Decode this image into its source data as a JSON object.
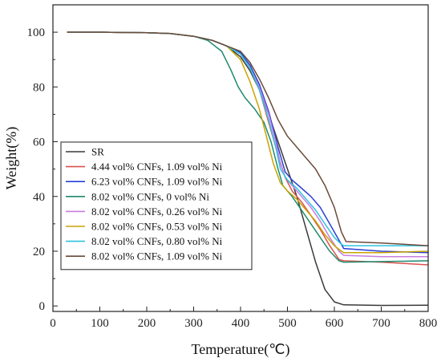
{
  "chart_data": {
    "type": "line",
    "title": "",
    "xlabel": "Temperature(℃)",
    "ylabel": "Weight(%)",
    "xlim": [
      0,
      800
    ],
    "ylim": [
      -2,
      110
    ],
    "xticks": [
      0,
      100,
      200,
      300,
      400,
      500,
      600,
      700,
      800
    ],
    "yticks": [
      0,
      20,
      40,
      60,
      80,
      100
    ],
    "grid": false,
    "legend_position": "left-middle",
    "series": [
      {
        "name": "SR",
        "color": "#3a3a3a",
        "points": [
          [
            30,
            100
          ],
          [
            100,
            100
          ],
          [
            200,
            99.8
          ],
          [
            250,
            99.5
          ],
          [
            300,
            98.5
          ],
          [
            340,
            97
          ],
          [
            370,
            95
          ],
          [
            400,
            91
          ],
          [
            420,
            86
          ],
          [
            440,
            79
          ],
          [
            460,
            70
          ],
          [
            480,
            60
          ],
          [
            500,
            50
          ],
          [
            520,
            40
          ],
          [
            540,
            28
          ],
          [
            560,
            16
          ],
          [
            580,
            6
          ],
          [
            600,
            1.5
          ],
          [
            620,
            0.4
          ],
          [
            700,
            0.2
          ],
          [
            800,
            0.3
          ]
        ]
      },
      {
        "name": "4.44 vol% CNFs, 1.09 vol% Ni",
        "color": "#d9534f",
        "points": [
          [
            30,
            100
          ],
          [
            100,
            100
          ],
          [
            200,
            99.8
          ],
          [
            250,
            99.5
          ],
          [
            300,
            98.5
          ],
          [
            340,
            97
          ],
          [
            370,
            95
          ],
          [
            400,
            92
          ],
          [
            420,
            87
          ],
          [
            440,
            79
          ],
          [
            460,
            67
          ],
          [
            480,
            55
          ],
          [
            495,
            47
          ],
          [
            510,
            42
          ],
          [
            530,
            38
          ],
          [
            550,
            33
          ],
          [
            570,
            28
          ],
          [
            590,
            22
          ],
          [
            610,
            17
          ],
          [
            620,
            16.5
          ],
          [
            700,
            16
          ],
          [
            800,
            15
          ]
        ]
      },
      {
        "name": "6.23 vol% CNFs, 1.09 vol% Ni",
        "color": "#2a3fd6",
        "points": [
          [
            30,
            100
          ],
          [
            100,
            100
          ],
          [
            200,
            99.8
          ],
          [
            250,
            99.5
          ],
          [
            300,
            98.5
          ],
          [
            340,
            97
          ],
          [
            370,
            95
          ],
          [
            400,
            92.5
          ],
          [
            420,
            88
          ],
          [
            440,
            81
          ],
          [
            460,
            71
          ],
          [
            480,
            58
          ],
          [
            495,
            49
          ],
          [
            510,
            46
          ],
          [
            530,
            43
          ],
          [
            550,
            40
          ],
          [
            570,
            36
          ],
          [
            590,
            30
          ],
          [
            610,
            24
          ],
          [
            620,
            21
          ],
          [
            700,
            20
          ],
          [
            800,
            19.5
          ]
        ]
      },
      {
        "name": "8.02 vol% CNFs, 0 vol% Ni",
        "color": "#1f8a6e",
        "points": [
          [
            30,
            100
          ],
          [
            100,
            100
          ],
          [
            200,
            99.8
          ],
          [
            250,
            99.5
          ],
          [
            300,
            98.5
          ],
          [
            330,
            97
          ],
          [
            360,
            93
          ],
          [
            380,
            86
          ],
          [
            395,
            80
          ],
          [
            410,
            76
          ],
          [
            430,
            72
          ],
          [
            450,
            67
          ],
          [
            465,
            60
          ],
          [
            480,
            50
          ],
          [
            490,
            44
          ],
          [
            510,
            40
          ],
          [
            530,
            35
          ],
          [
            550,
            30
          ],
          [
            570,
            25
          ],
          [
            590,
            20
          ],
          [
            610,
            16.5
          ],
          [
            620,
            16
          ],
          [
            700,
            16.2
          ],
          [
            800,
            16.5
          ]
        ]
      },
      {
        "name": "8.02 vol% CNFs, 0.26 vol% Ni",
        "color": "#c77dde",
        "points": [
          [
            30,
            100
          ],
          [
            100,
            100
          ],
          [
            200,
            99.8
          ],
          [
            250,
            99.5
          ],
          [
            300,
            98.5
          ],
          [
            340,
            97
          ],
          [
            370,
            95
          ],
          [
            400,
            92
          ],
          [
            420,
            87
          ],
          [
            440,
            80
          ],
          [
            460,
            70
          ],
          [
            475,
            60
          ],
          [
            485,
            52
          ],
          [
            495,
            47
          ],
          [
            510,
            44
          ],
          [
            530,
            40
          ],
          [
            550,
            36
          ],
          [
            570,
            31
          ],
          [
            590,
            25
          ],
          [
            610,
            20
          ],
          [
            620,
            18.5
          ],
          [
            700,
            18
          ],
          [
            800,
            18
          ]
        ]
      },
      {
        "name": "8.02 vol% CNFs, 0.53 vol% Ni",
        "color": "#c8a400",
        "points": [
          [
            30,
            100
          ],
          [
            100,
            100
          ],
          [
            200,
            99.8
          ],
          [
            250,
            99.5
          ],
          [
            300,
            98.5
          ],
          [
            340,
            97
          ],
          [
            370,
            95
          ],
          [
            400,
            90
          ],
          [
            420,
            82
          ],
          [
            440,
            72
          ],
          [
            455,
            62
          ],
          [
            470,
            52
          ],
          [
            485,
            45
          ],
          [
            500,
            42
          ],
          [
            520,
            39
          ],
          [
            540,
            35
          ],
          [
            560,
            31
          ],
          [
            580,
            26
          ],
          [
            600,
            22
          ],
          [
            615,
            20
          ],
          [
            620,
            19.5
          ],
          [
            700,
            19.5
          ],
          [
            800,
            20
          ]
        ]
      },
      {
        "name": "8.02 vol% CNFs, 0.80 vol% Ni",
        "color": "#2ec4e0",
        "points": [
          [
            30,
            100
          ],
          [
            100,
            100
          ],
          [
            200,
            99.8
          ],
          [
            250,
            99.5
          ],
          [
            300,
            98.5
          ],
          [
            340,
            97
          ],
          [
            370,
            95
          ],
          [
            400,
            92
          ],
          [
            420,
            87
          ],
          [
            440,
            79
          ],
          [
            460,
            68
          ],
          [
            475,
            58
          ],
          [
            485,
            50
          ],
          [
            500,
            46
          ],
          [
            520,
            43
          ],
          [
            540,
            39
          ],
          [
            560,
            35
          ],
          [
            580,
            30
          ],
          [
            600,
            25
          ],
          [
            615,
            22.5
          ],
          [
            620,
            22
          ],
          [
            700,
            22
          ],
          [
            800,
            22
          ]
        ]
      },
      {
        "name": "8.02 vol% CNFs, 1.09 vol% Ni",
        "color": "#6b4a3a",
        "points": [
          [
            30,
            100
          ],
          [
            100,
            100
          ],
          [
            200,
            99.8
          ],
          [
            250,
            99.5
          ],
          [
            300,
            98.5
          ],
          [
            340,
            97
          ],
          [
            370,
            95
          ],
          [
            400,
            93
          ],
          [
            420,
            89
          ],
          [
            440,
            83
          ],
          [
            460,
            76
          ],
          [
            480,
            68
          ],
          [
            500,
            62
          ],
          [
            520,
            58
          ],
          [
            540,
            54
          ],
          [
            560,
            50
          ],
          [
            580,
            44
          ],
          [
            600,
            36
          ],
          [
            615,
            27
          ],
          [
            625,
            23.5
          ],
          [
            700,
            23
          ],
          [
            800,
            22
          ]
        ]
      }
    ]
  }
}
